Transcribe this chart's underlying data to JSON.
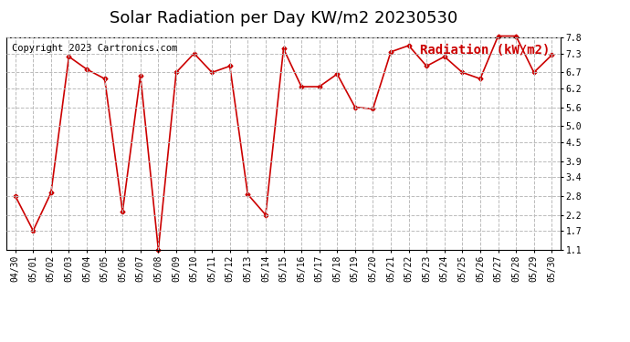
{
  "title": "Solar Radiation per Day KW/m2 20230530",
  "copyright": "Copyright 2023 Cartronics.com",
  "legend_label": "Radiation (kW/m2)",
  "dates": [
    "04/30",
    "05/01",
    "05/02",
    "05/03",
    "05/04",
    "05/05",
    "05/06",
    "05/07",
    "05/08",
    "05/09",
    "05/10",
    "05/11",
    "05/12",
    "05/13",
    "05/14",
    "05/15",
    "05/16",
    "05/17",
    "05/18",
    "05/19",
    "05/20",
    "05/21",
    "05/22",
    "05/23",
    "05/24",
    "05/25",
    "05/26",
    "05/27",
    "05/28",
    "05/29",
    "05/30"
  ],
  "values": [
    2.8,
    1.7,
    2.9,
    7.2,
    6.8,
    6.5,
    2.3,
    6.6,
    1.1,
    6.7,
    7.3,
    6.7,
    6.9,
    2.85,
    2.2,
    7.45,
    6.25,
    6.25,
    6.65,
    5.6,
    5.55,
    7.35,
    7.55,
    6.9,
    7.2,
    6.7,
    6.5,
    7.85,
    7.85,
    6.7,
    7.25
  ],
  "line_color": "#cc0000",
  "marker": "D",
  "marker_size": 2.5,
  "line_width": 1.2,
  "ylim_min": 1.1,
  "ylim_max": 7.8,
  "yticks": [
    1.1,
    1.7,
    2.2,
    2.8,
    3.4,
    3.9,
    4.5,
    5.0,
    5.6,
    6.2,
    6.7,
    7.3,
    7.8
  ],
  "grid_color": "#bbbbbb",
  "grid_style": "--",
  "bg_color": "#ffffff",
  "title_fontsize": 13,
  "copyright_fontsize": 7.5,
  "legend_fontsize": 10,
  "tick_fontsize": 7
}
